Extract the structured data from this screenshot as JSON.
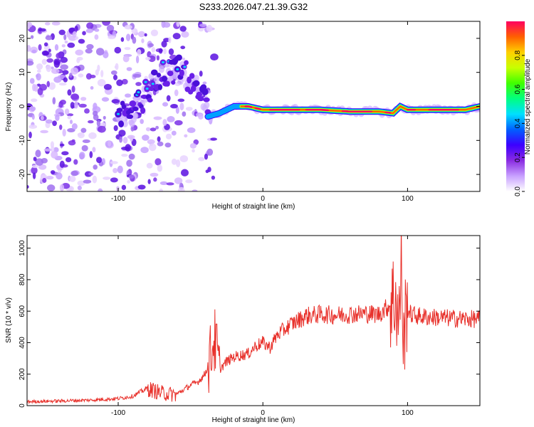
{
  "title": "S233.2026.047.21.39.G32",
  "chart_data": [
    {
      "type": "heatmap",
      "xlabel": "Height of straight line (km)",
      "ylabel": "Frequency (Hz)",
      "xlim": [
        -163,
        150
      ],
      "ylim": [
        -25,
        25
      ],
      "xticks": [
        -100,
        0,
        100
      ],
      "yticks": [
        -20,
        -10,
        0,
        10,
        20
      ],
      "colorbar": {
        "label": "Normalized spectral amplitude",
        "range": [
          0,
          1
        ],
        "ticks": [
          0,
          0.2,
          0.4,
          0.6,
          0.8
        ],
        "colormap": [
          "#ffffff",
          "#c8a0ff",
          "#8a2be2",
          "#3c00ff",
          "#0060ff",
          "#00e0ff",
          "#00ff80",
          "#40ff00",
          "#c8ff00",
          "#ffd000",
          "#ff6000",
          "#ff0060"
        ]
      },
      "ridge": {
        "description_points_x": [
          -163,
          -100,
          -90,
          -80,
          -70,
          -60,
          -50,
          -42,
          -38,
          -30,
          -20,
          -10,
          0,
          20,
          40,
          60,
          80,
          90,
          95,
          100,
          110,
          120,
          130,
          140,
          150
        ],
        "description_points_freq": [
          5,
          -2,
          -3,
          5,
          9,
          11,
          8,
          4,
          -3,
          -2,
          0,
          0,
          -1,
          -1,
          -1,
          -1.5,
          -1.5,
          -2,
          0,
          -1,
          -1,
          -1,
          -1,
          -1,
          0
        ]
      }
    },
    {
      "type": "line",
      "xlabel": "Height of straight line (km)",
      "ylabel": "SNR (10 * v/v)",
      "xlim": [
        -163,
        150
      ],
      "ylim": [
        0,
        1080
      ],
      "xticks": [
        -100,
        0,
        100
      ],
      "yticks": [
        0,
        200,
        400,
        600,
        800,
        1000
      ],
      "color": "#e8302a",
      "series": [
        {
          "name": "SNR",
          "x": [
            -163,
            -140,
            -120,
            -100,
            -90,
            -80,
            -70,
            -60,
            -50,
            -45,
            -40,
            -36,
            -34,
            -32,
            -30,
            -25,
            -20,
            -10,
            -5,
            0,
            5,
            10,
            20,
            30,
            40,
            50,
            60,
            70,
            80,
            88,
            92,
            94,
            96,
            97,
            98,
            100,
            102,
            110,
            120,
            130,
            140,
            150
          ],
          "values": [
            25,
            30,
            35,
            45,
            60,
            110,
            80,
            70,
            130,
            150,
            200,
            320,
            430,
            360,
            230,
            280,
            310,
            330,
            380,
            400,
            370,
            450,
            520,
            570,
            580,
            575,
            580,
            585,
            580,
            640,
            700,
            500,
            950,
            300,
            520,
            620,
            580,
            565,
            560,
            555,
            550,
            550
          ]
        }
      ]
    }
  ]
}
